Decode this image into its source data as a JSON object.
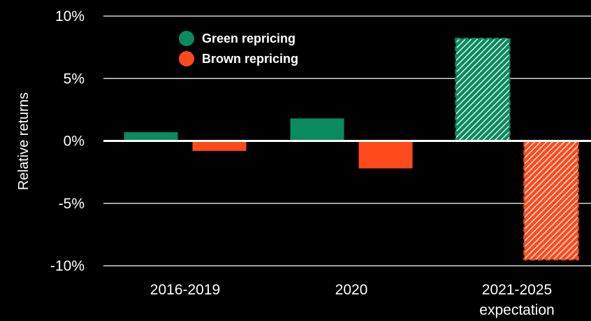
{
  "chart_data": {
    "type": "bar",
    "ylabel": "Relative returns",
    "ylim": [
      -10,
      10
    ],
    "yticks": [
      10,
      5,
      0,
      -5,
      -10
    ],
    "ytick_labels": [
      "10%",
      "5%",
      "0%",
      "-5%",
      "-10%"
    ],
    "categories": [
      "2016-2019",
      "2020",
      "2021-2025 expectation"
    ],
    "category_lines": [
      [
        "2016-2019"
      ],
      [
        "2020"
      ],
      [
        "2021-2025",
        "expectation"
      ]
    ],
    "series": [
      {
        "name": "Green repricing",
        "color": "#0a8a5f",
        "values": [
          0.7,
          1.8,
          8.2
        ],
        "projected": [
          false,
          false,
          true
        ]
      },
      {
        "name": "Brown repricing",
        "color": "#ff4a1c",
        "values": [
          -0.8,
          -2.2,
          -9.5
        ],
        "projected": [
          false,
          false,
          true
        ]
      }
    ],
    "grid": true,
    "legend": "top-left"
  }
}
